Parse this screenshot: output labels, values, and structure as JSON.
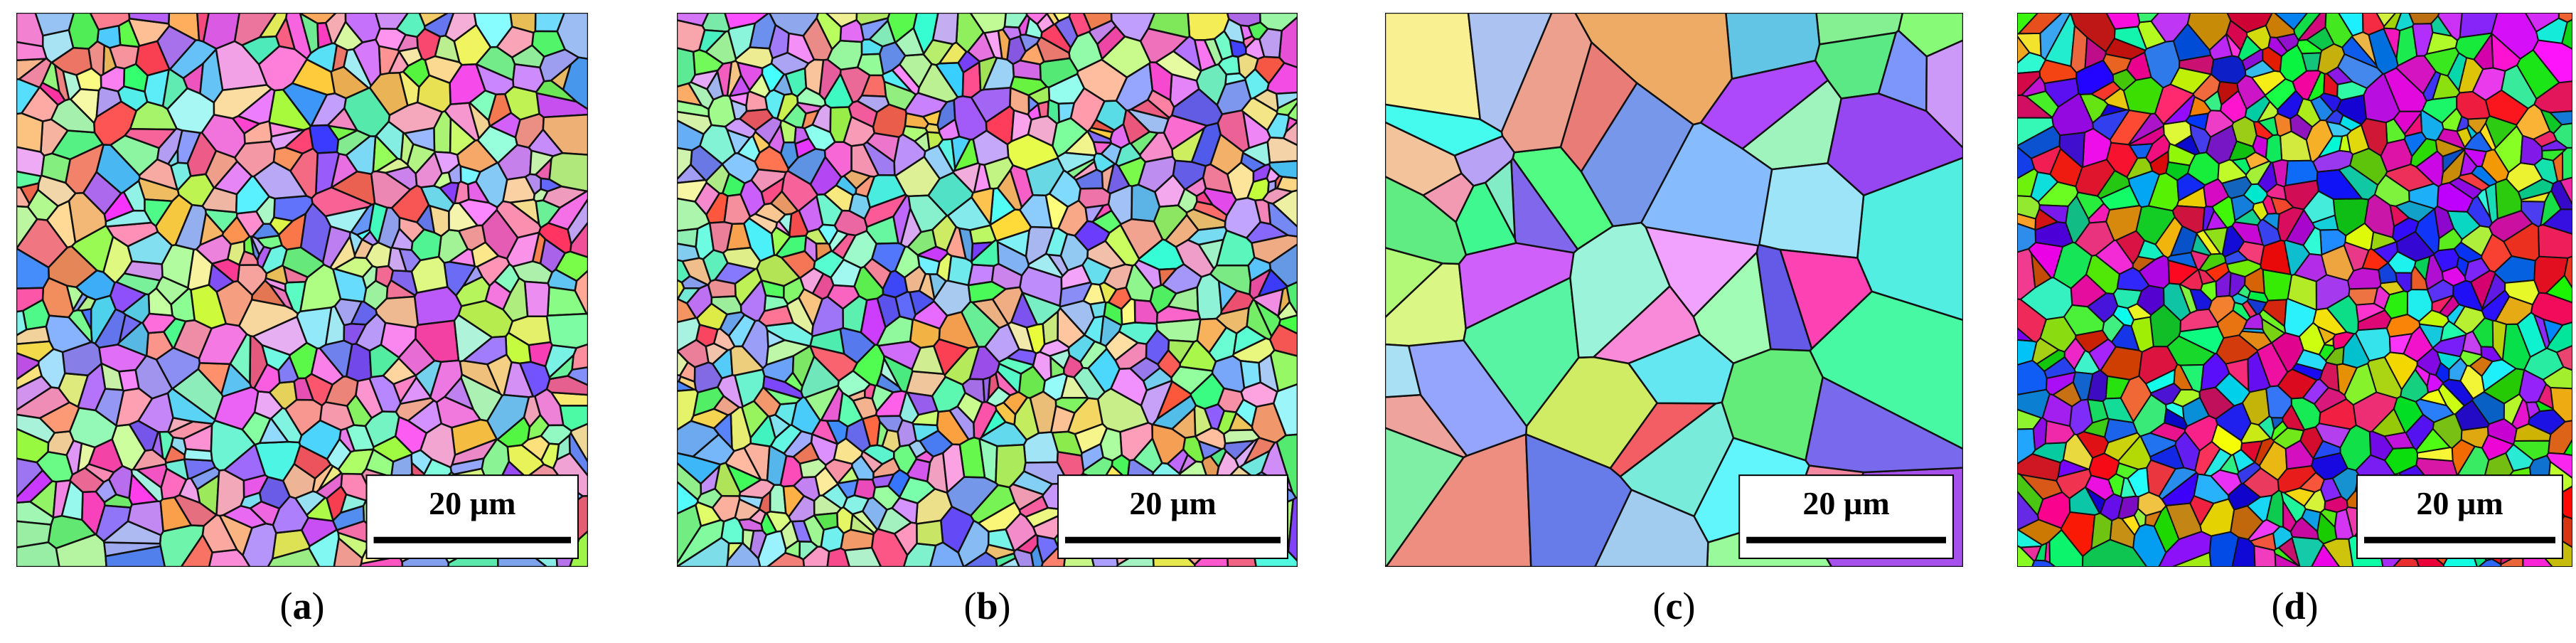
{
  "panels": [
    {
      "scale_bar": "20 µm",
      "caption": [
        "(",
        "a",
        ")"
      ]
    },
    {
      "scale_bar": "20 µm",
      "caption": [
        "(",
        "b",
        ")"
      ]
    },
    {
      "scale_bar": "20 µm",
      "caption": [
        "(",
        "c",
        ")"
      ]
    },
    {
      "scale_bar": "20 µm",
      "caption": [
        "(",
        "d",
        ")"
      ]
    }
  ]
}
